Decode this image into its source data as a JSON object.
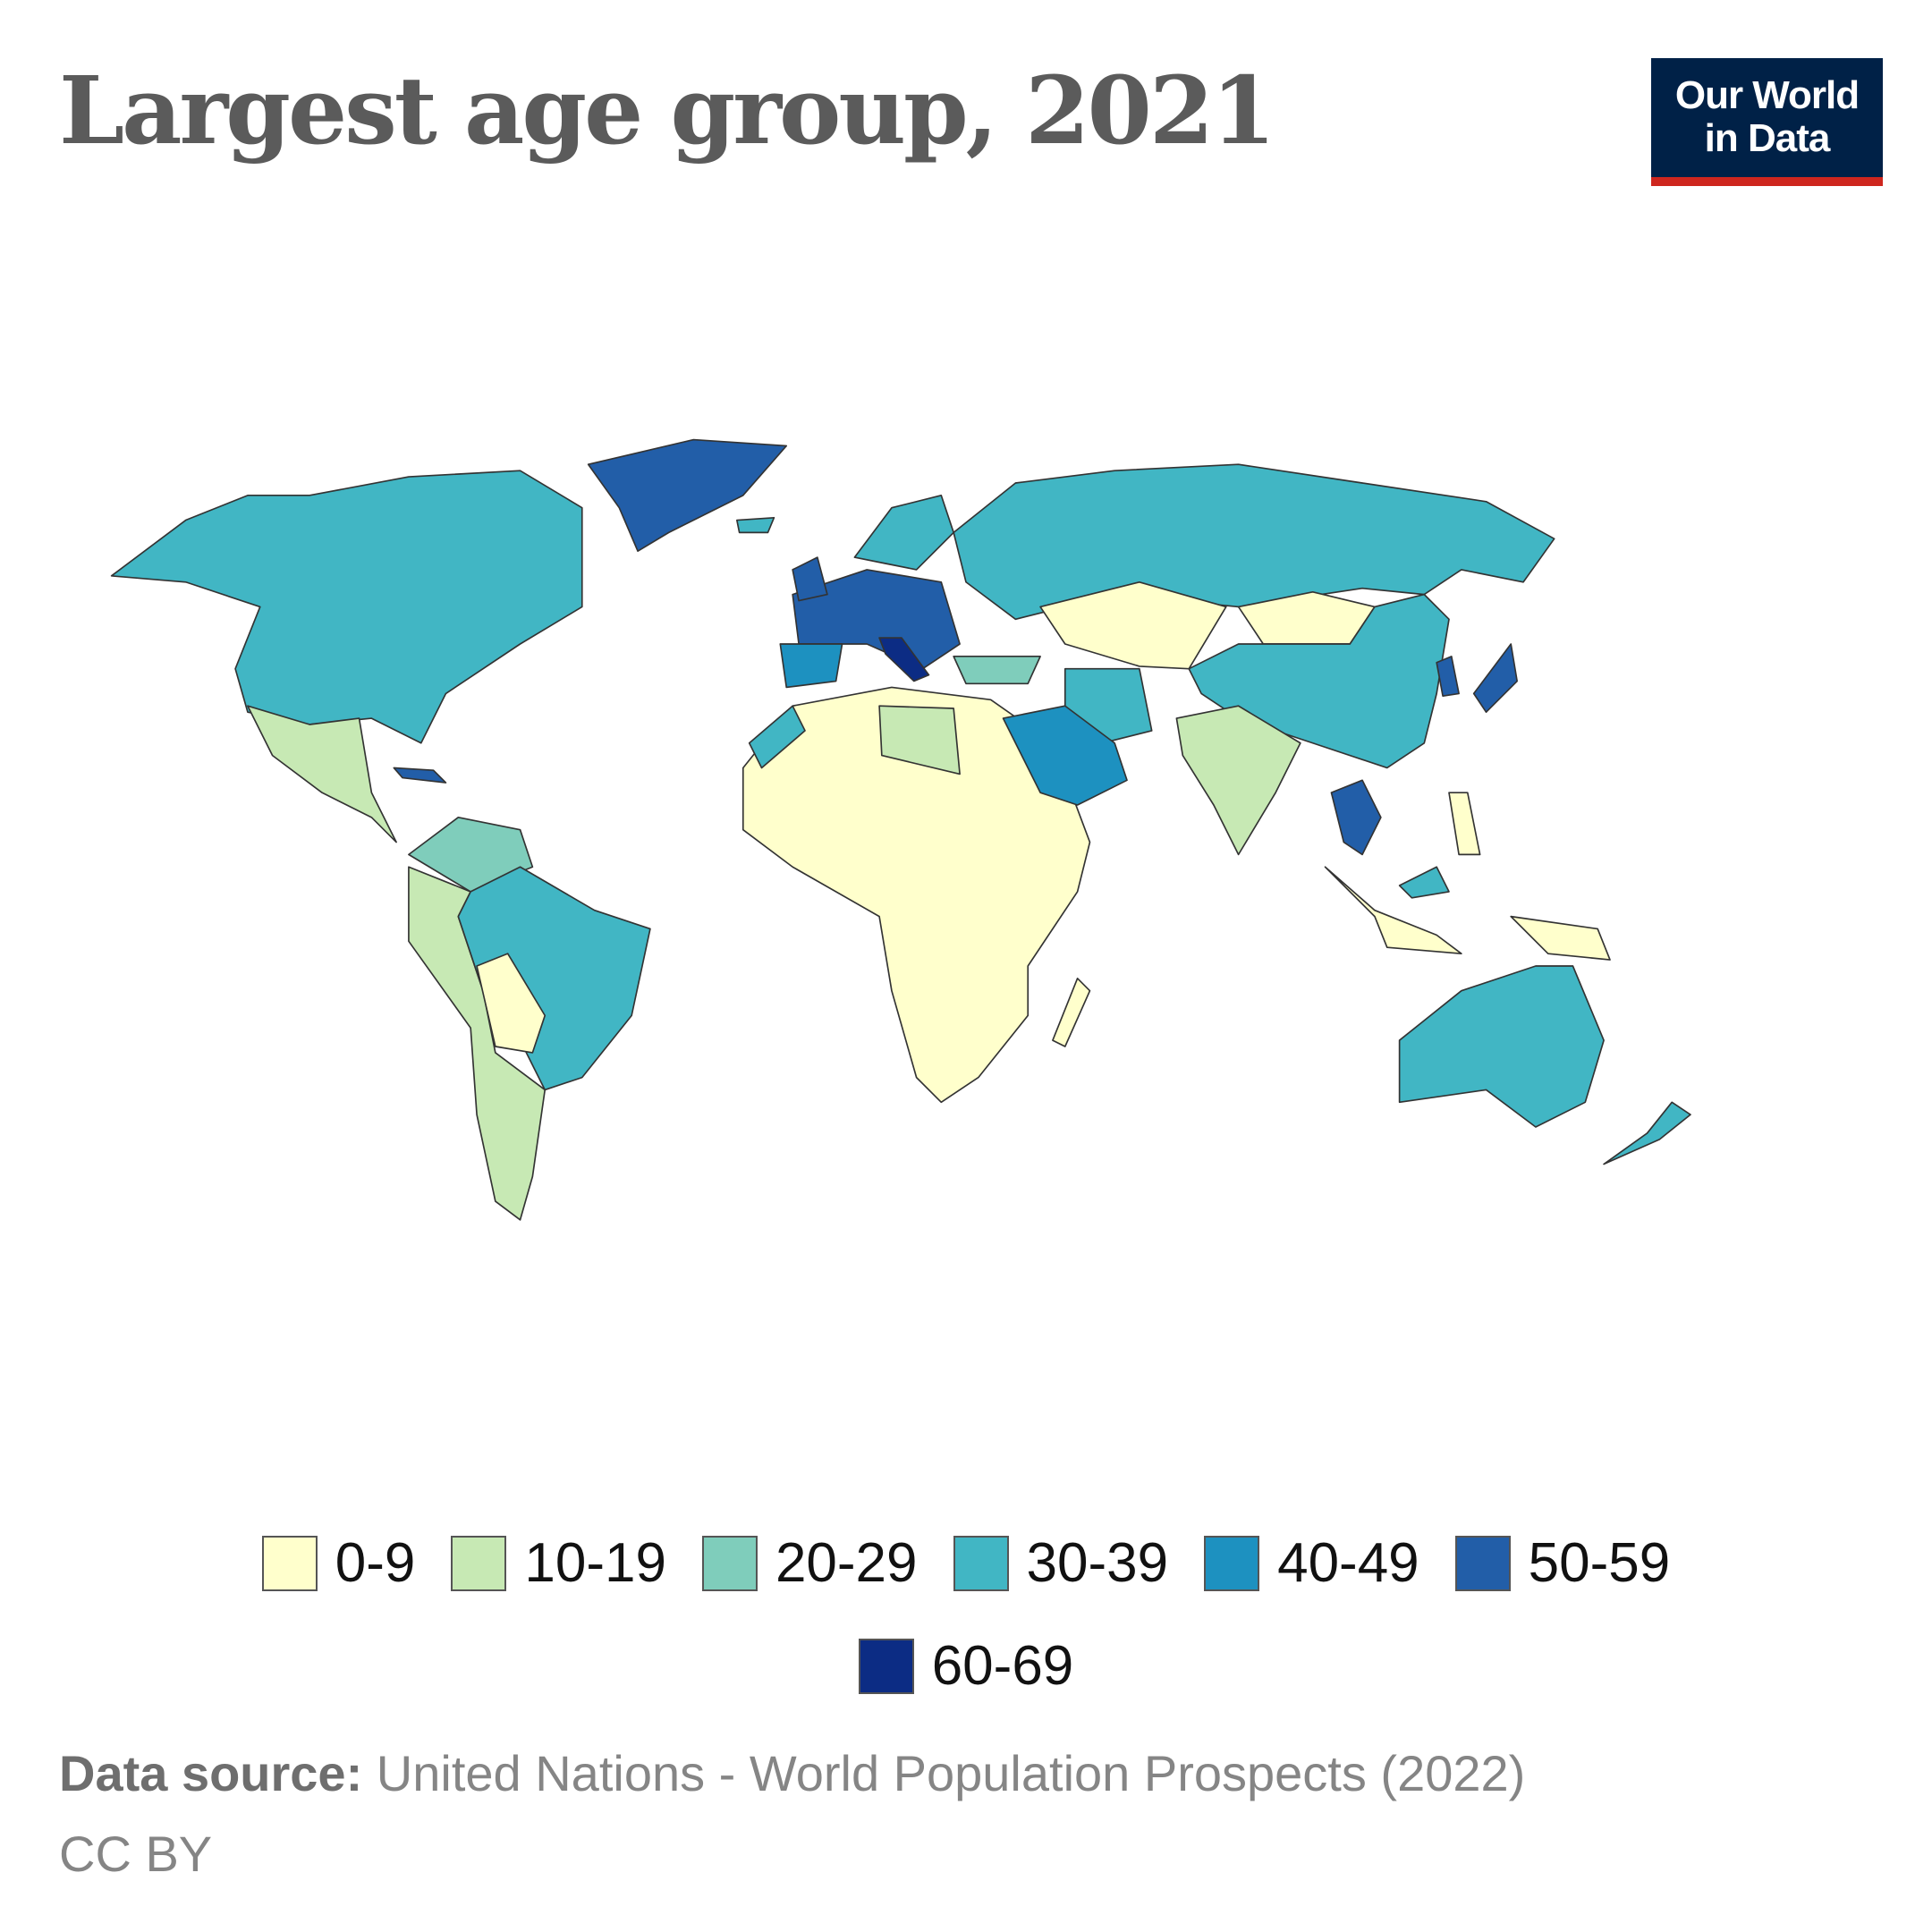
{
  "title": "Largest age group, 2021",
  "logo": {
    "line1": "Our World",
    "line2": "in Data"
  },
  "chart_data": {
    "type": "choropleth-map",
    "title": "Largest age group, 2021",
    "legend": [
      {
        "label": "0-9",
        "color": "#ffffcc"
      },
      {
        "label": "10-19",
        "color": "#c7e9b4"
      },
      {
        "label": "20-29",
        "color": "#7fcdbb"
      },
      {
        "label": "30-39",
        "color": "#41b6c4"
      },
      {
        "label": "40-49",
        "color": "#1d91c0"
      },
      {
        "label": "50-59",
        "color": "#225ea8"
      },
      {
        "label": "60-69",
        "color": "#0c2c84"
      }
    ],
    "regions": {
      "north-america": "30-39",
      "greenland": "50-59",
      "iceland": "30-39",
      "mexico-central-america": "10-19",
      "cuba": "50-59",
      "andes": "10-19",
      "colombia-venezuela": "20-29",
      "brazil": "30-39",
      "bolivia-paraguay": "0-9",
      "africa": "0-9",
      "libya": "10-19",
      "morocco": "30-39",
      "western-europe": "50-59",
      "italy": "60-69",
      "iberia": "40-49",
      "scandinavia": "30-39",
      "uk": "50-59",
      "russia": "30-39",
      "turkey": "20-29",
      "iran": "30-39",
      "saudi-arabia": "40-49",
      "central-asia": "0-9",
      "mongolia": "0-9",
      "china": "30-39",
      "india": "10-19",
      "thailand": "50-59",
      "korea": "50-59",
      "japan": "50-59",
      "philippines": "0-9",
      "indonesia": "0-9",
      "malaysia": "30-39",
      "papua-new-guinea": "0-9",
      "australia": "30-39",
      "new-zealand": "30-39",
      "madagascar": "0-9"
    }
  },
  "source": {
    "label": "Data source:",
    "text": " United Nations - World Population Prospects (2022)"
  },
  "license": "CC BY"
}
